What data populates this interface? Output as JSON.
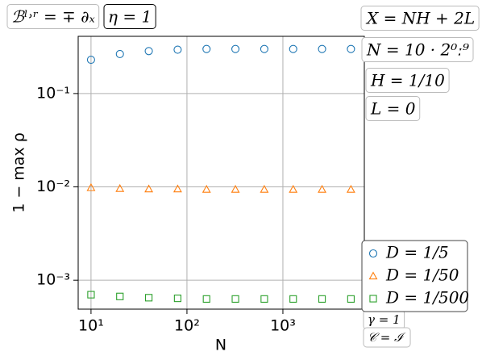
{
  "chart_data": {
    "type": "scatter",
    "x_label": "N",
    "y_label": "1 − max ρ",
    "xscale": "log",
    "yscale": "log",
    "grid": true,
    "legend": "lower right",
    "xlim": [
      7.35,
      7060
    ],
    "ylim": [
      0.00049,
      0.41
    ],
    "xticks": [
      {
        "value": 10,
        "label": "10¹"
      },
      {
        "value": 100,
        "label": "10²"
      },
      {
        "value": 1000,
        "label": "10³"
      }
    ],
    "yticks": [
      {
        "value": 0.001,
        "label": "10⁻³"
      },
      {
        "value": 0.01,
        "label": "10⁻²"
      },
      {
        "value": 0.1,
        "label": "10⁻¹"
      }
    ],
    "x": [
      10,
      20,
      40,
      80,
      160,
      320,
      640,
      1280,
      2560,
      5120
    ],
    "series": [
      {
        "name": "D = 1/5",
        "color": "#1f77b4",
        "marker": "circle",
        "values": [
          0.23,
          0.265,
          0.285,
          0.295,
          0.3,
          0.3,
          0.3,
          0.3,
          0.3,
          0.3
        ]
      },
      {
        "name": "D = 1/50",
        "color": "#ff7f0e",
        "marker": "triangle",
        "values": [
          0.0098,
          0.0096,
          0.0095,
          0.0095,
          0.0094,
          0.0094,
          0.0094,
          0.0094,
          0.0094,
          0.0094
        ]
      },
      {
        "name": "D = 1/500",
        "color": "#2ca02c",
        "marker": "square",
        "values": [
          0.0007,
          0.00067,
          0.00065,
          0.00064,
          0.00063,
          0.00063,
          0.00063,
          0.00063,
          0.00063,
          0.00063
        ]
      }
    ],
    "annotations": [
      "ℬˡ˒ʳ = ∓ ∂ₓ",
      "η = 1",
      "X = NH + 2L",
      "N = 10 · 2⁰ː⁹",
      "H = 1/10",
      "L = 0",
      "γ = 1",
      "𝒞 = ℐ"
    ]
  }
}
